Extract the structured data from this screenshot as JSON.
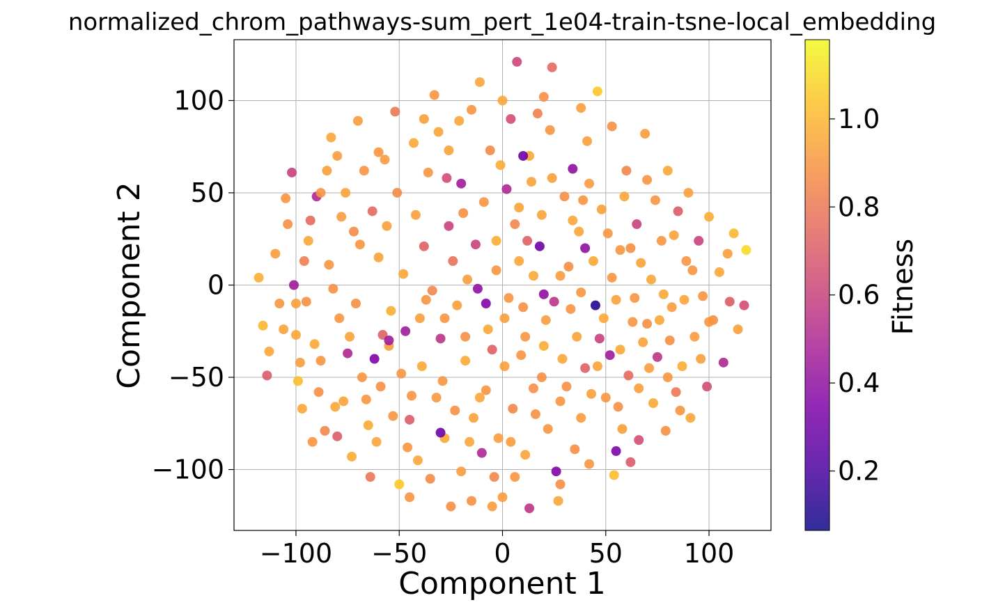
{
  "chart_data": {
    "type": "scatter",
    "title": "normalized_chrom_pathways-sum_pert_1e04-train-tsne-local_embedding",
    "xlabel": "Component 1",
    "ylabel": "Component 2",
    "xlim": [
      -130,
      130
    ],
    "ylim": [
      -133,
      133
    ],
    "xticks": [
      -100,
      -50,
      0,
      50,
      100
    ],
    "yticks": [
      -100,
      -50,
      0,
      50,
      100
    ],
    "xtick_labels": [
      "−100",
      "−50",
      "0",
      "50",
      "100"
    ],
    "ytick_labels": [
      "−100",
      "−50",
      "0",
      "50",
      "100"
    ],
    "grid": true,
    "colorbar": {
      "label": "Fitness",
      "range": [
        0.065,
        1.18
      ],
      "ticks": [
        0.2,
        0.4,
        0.6,
        0.8,
        1.0
      ],
      "tick_labels": [
        "0.2",
        "0.4",
        "0.6",
        "0.8",
        "1.0"
      ],
      "colormap": "plasma"
    },
    "points": [
      [
        -118,
        4,
        0.98
      ],
      [
        -116,
        -22,
        1.0
      ],
      [
        -113,
        -36,
        0.95
      ],
      [
        -114,
        -49,
        0.7
      ],
      [
        -110,
        17,
        0.92
      ],
      [
        -105,
        47,
        0.9
      ],
      [
        -102,
        61,
        0.6
      ],
      [
        -101,
        0,
        0.45
      ],
      [
        -100,
        -27,
        0.95
      ],
      [
        -99,
        -52,
        1.02
      ],
      [
        -97,
        -67,
        0.95
      ],
      [
        -95,
        -9,
        0.88
      ],
      [
        -93,
        35,
        0.75
      ],
      [
        -90,
        48,
        0.5
      ],
      [
        -88,
        -41,
        0.9
      ],
      [
        -86,
        -79,
        0.85
      ],
      [
        -83,
        80,
        0.95
      ],
      [
        -82,
        -2,
        0.88
      ],
      [
        -80,
        -82,
        0.7
      ],
      [
        -77,
        -63,
        0.94
      ],
      [
        -75,
        -37,
        0.5
      ],
      [
        -73,
        -93,
        0.97
      ],
      [
        -72,
        29,
        0.86
      ],
      [
        -70,
        89,
        0.92
      ],
      [
        -68,
        -50,
        0.9
      ],
      [
        -66,
        -62,
        0.9
      ],
      [
        -64,
        -104,
        0.8
      ],
      [
        -62,
        -40,
        0.35
      ],
      [
        -60,
        15,
        0.94
      ],
      [
        -58,
        -27,
        0.72
      ],
      [
        -55,
        -33,
        0.92
      ],
      [
        -53,
        -71,
        0.9
      ],
      [
        -52,
        94,
        0.8
      ],
      [
        -50,
        -108,
        1.05
      ],
      [
        -49,
        -48,
        0.9
      ],
      [
        -47,
        -25,
        0.45
      ],
      [
        -45,
        -73,
        0.7
      ],
      [
        -43,
        77,
        0.96
      ],
      [
        -40,
        -18,
        0.93
      ],
      [
        -38,
        21,
        0.72
      ],
      [
        -37,
        -8,
        0.9
      ],
      [
        -35,
        -105,
        0.86
      ],
      [
        -33,
        103,
        0.9
      ],
      [
        -32,
        -61,
        0.91
      ],
      [
        -30,
        -29,
        0.55
      ],
      [
        -28,
        -83,
        0.96
      ],
      [
        -27,
        58,
        0.65
      ],
      [
        -25,
        -120,
        0.88
      ],
      [
        -24,
        13,
        0.78
      ],
      [
        -22,
        -11,
        0.93
      ],
      [
        -20,
        -101,
        0.92
      ],
      [
        -19,
        39,
        0.88
      ],
      [
        -18,
        -41,
        0.96
      ],
      [
        -16,
        -85,
        0.95
      ],
      [
        -15,
        -117,
        0.88
      ],
      [
        -13,
        22,
        0.6
      ],
      [
        -12,
        -2,
        0.4
      ],
      [
        -11,
        110,
        0.95
      ],
      [
        -10,
        -91,
        0.5
      ],
      [
        -8,
        -57,
        0.9
      ],
      [
        -7,
        -24,
        0.96
      ],
      [
        -6,
        73,
        0.86
      ],
      [
        -4,
        -104,
        0.85
      ],
      [
        -3,
        24,
        0.97
      ],
      [
        -2,
        -83,
        0.92
      ],
      [
        0,
        -115,
        0.92
      ],
      [
        1,
        -44,
        0.93
      ],
      [
        2,
        52,
        0.5
      ],
      [
        3,
        -7,
        0.9
      ],
      [
        4,
        90,
        0.65
      ],
      [
        5,
        -67,
        0.85
      ],
      [
        6,
        -104,
        0.9
      ],
      [
        7,
        121,
        0.62
      ],
      [
        8,
        13,
        0.95
      ],
      [
        10,
        -12,
        0.88
      ],
      [
        11,
        -92,
        0.94
      ],
      [
        12,
        24,
        0.72
      ],
      [
        13,
        -121,
        0.55
      ],
      [
        14,
        56,
        0.94
      ],
      [
        15,
        -56,
        0.88
      ],
      [
        17,
        93,
        0.83
      ],
      [
        18,
        21,
        0.3
      ],
      [
        20,
        -33,
        0.97
      ],
      [
        22,
        -78,
        0.9
      ],
      [
        24,
        118,
        0.75
      ],
      [
        25,
        -9,
        0.55
      ],
      [
        26,
        -101,
        0.35
      ],
      [
        27,
        -117,
        0.95
      ],
      [
        28,
        5,
        0.92
      ],
      [
        30,
        48,
        0.88
      ],
      [
        31,
        -55,
        0.88
      ],
      [
        33,
        -13,
        0.9
      ],
      [
        34,
        63,
        0.4
      ],
      [
        35,
        -89,
        0.88
      ],
      [
        37,
        29,
        0.95
      ],
      [
        38,
        -72,
        0.92
      ],
      [
        40,
        -45,
        0.72
      ],
      [
        41,
        78,
        0.93
      ],
      [
        42,
        -97,
        0.9
      ],
      [
        44,
        13,
        0.96
      ],
      [
        45,
        -11,
        0.12
      ],
      [
        46,
        105,
        1.05
      ],
      [
        47,
        -29,
        0.6
      ],
      [
        48,
        41,
        0.93
      ],
      [
        50,
        -61,
        0.9
      ],
      [
        52,
        -38,
        0.45
      ],
      [
        53,
        86,
        0.88
      ],
      [
        54,
        -103,
        1.02
      ],
      [
        55,
        -8,
        0.94
      ],
      [
        57,
        19,
        0.9
      ],
      [
        58,
        -78,
        0.93
      ],
      [
        60,
        62,
        0.85
      ],
      [
        61,
        -49,
        0.75
      ],
      [
        62,
        -96,
        0.7
      ],
      [
        64,
        -7,
        0.9
      ],
      [
        65,
        33,
        0.6
      ],
      [
        66,
        -84,
        0.65
      ],
      [
        68,
        -31,
        0.94
      ],
      [
        69,
        82,
        0.92
      ],
      [
        70,
        -21,
        0.88
      ],
      [
        72,
        3,
        0.95
      ],
      [
        73,
        -64,
        0.96
      ],
      [
        75,
        -39,
        0.55
      ],
      [
        77,
        24,
        0.9
      ],
      [
        79,
        -79,
        0.88
      ],
      [
        80,
        62,
        0.95
      ],
      [
        82,
        -12,
        0.92
      ],
      [
        84,
        -58,
        0.8
      ],
      [
        85,
        40,
        0.7
      ],
      [
        87,
        -44,
        0.97
      ],
      [
        89,
        13,
        0.9
      ],
      [
        91,
        -72,
        0.95
      ],
      [
        93,
        -28,
        0.92
      ],
      [
        95,
        24,
        0.6
      ],
      [
        97,
        -6,
        0.9
      ],
      [
        99,
        -55,
        0.65
      ],
      [
        100,
        37,
        0.97
      ],
      [
        102,
        -19,
        0.88
      ],
      [
        105,
        7,
        0.95
      ],
      [
        107,
        -42,
        0.5
      ],
      [
        109,
        17,
        0.93
      ],
      [
        110,
        -9,
        0.7
      ],
      [
        112,
        28,
        1.0
      ],
      [
        114,
        -24,
        0.93
      ],
      [
        117,
        -11,
        0.65
      ],
      [
        118,
        19,
        1.1
      ],
      [
        -108,
        -10,
        0.9
      ],
      [
        -104,
        33,
        0.88
      ],
      [
        -96,
        13,
        0.82
      ],
      [
        -91,
        -32,
        0.96
      ],
      [
        -85,
        62,
        0.93
      ],
      [
        -79,
        -18,
        0.9
      ],
      [
        -76,
        50,
        0.94
      ],
      [
        -71,
        -10,
        0.88
      ],
      [
        -67,
        62,
        0.9
      ],
      [
        -63,
        40,
        0.75
      ],
      [
        -61,
        -85,
        0.95
      ],
      [
        -57,
        68,
        0.92
      ],
      [
        -54,
        -14,
        0.97
      ],
      [
        -51,
        50,
        0.86
      ],
      [
        -48,
        6,
        0.95
      ],
      [
        -46,
        -88,
        0.9
      ],
      [
        -42,
        38,
        0.93
      ],
      [
        -39,
        -44,
        0.96
      ],
      [
        -36,
        61,
        0.9
      ],
      [
        -34,
        -3,
        0.85
      ],
      [
        -31,
        83,
        0.94
      ],
      [
        -29,
        -52,
        0.9
      ],
      [
        -26,
        32,
        0.6
      ],
      [
        -23,
        -68,
        0.88
      ],
      [
        -21,
        89,
        0.95
      ],
      [
        -17,
        3,
        0.92
      ],
      [
        -14,
        -72,
        0.94
      ],
      [
        -9,
        45,
        0.9
      ],
      [
        -5,
        -35,
        0.72
      ],
      [
        -1,
        65,
        0.97
      ],
      [
        1,
        -18,
        0.93
      ],
      [
        6,
        33,
        0.85
      ],
      [
        9,
        -38,
        0.9
      ],
      [
        13,
        70,
        0.96
      ],
      [
        16,
        -70,
        0.88
      ],
      [
        19,
        38,
        0.94
      ],
      [
        21,
        -19,
        0.92
      ],
      [
        23,
        84,
        0.9
      ],
      [
        29,
        -40,
        0.96
      ],
      [
        32,
        10,
        0.88
      ],
      [
        36,
        -28,
        0.94
      ],
      [
        39,
        46,
        0.9
      ],
      [
        43,
        -59,
        0.93
      ],
      [
        49,
        -18,
        0.96
      ],
      [
        51,
        28,
        0.9
      ],
      [
        56,
        -66,
        0.88
      ],
      [
        59,
        48,
        0.95
      ],
      [
        63,
        -20,
        0.9
      ],
      [
        67,
        12,
        0.94
      ],
      [
        71,
        -45,
        0.92
      ],
      [
        74,
        46,
        0.9
      ],
      [
        78,
        -5,
        0.96
      ],
      [
        81,
        -30,
        0.88
      ],
      [
        83,
        27,
        0.94
      ],
      [
        86,
        -68,
        0.9
      ],
      [
        88,
        -8,
        0.95
      ],
      [
        92,
        8,
        0.9
      ],
      [
        96,
        -40,
        0.93
      ],
      [
        -106,
        -24,
        0.94
      ],
      [
        -98,
        -42,
        0.92
      ],
      [
        -94,
        24,
        0.96
      ],
      [
        -89,
        -58,
        0.88
      ],
      [
        -84,
        11,
        0.9
      ],
      [
        -81,
        -66,
        0.95
      ],
      [
        -78,
        37,
        0.92
      ],
      [
        -74,
        -28,
        0.94
      ],
      [
        -69,
        22,
        0.9
      ],
      [
        -65,
        -76,
        0.96
      ],
      [
        -59,
        -55,
        0.88
      ],
      [
        -56,
        32,
        0.93
      ],
      [
        -44,
        -60,
        0.9
      ],
      [
        -41,
        -95,
        0.95
      ],
      [
        -28,
        -18,
        0.9
      ],
      [
        -26,
        73,
        0.94
      ],
      [
        -18,
        -28,
        0.88
      ],
      [
        -11,
        -61,
        0.95
      ],
      [
        -3,
        8,
        0.9
      ],
      [
        4,
        -85,
        0.92
      ],
      [
        8,
        42,
        0.94
      ],
      [
        11,
        -28,
        0.9
      ],
      [
        15,
        5,
        0.96
      ],
      [
        19,
        -50,
        0.88
      ],
      [
        24,
        58,
        0.93
      ],
      [
        28,
        -63,
        0.9
      ],
      [
        34,
        35,
        0.95
      ],
      [
        38,
        -4,
        0.9
      ],
      [
        42,
        55,
        0.92
      ],
      [
        46,
        -44,
        0.94
      ],
      [
        53,
        4,
        0.9
      ],
      [
        57,
        -35,
        0.96
      ],
      [
        62,
        20,
        0.88
      ],
      [
        66,
        -56,
        0.93
      ],
      [
        70,
        57,
        0.9
      ],
      [
        76,
        -19,
        0.95
      ],
      [
        80,
        -50,
        0.9
      ],
      [
        -60,
        72,
        0.9
      ],
      [
        -38,
        90,
        0.93
      ],
      [
        -15,
        95,
        0.9
      ],
      [
        0,
        100,
        0.95
      ],
      [
        20,
        102,
        0.88
      ],
      [
        38,
        96,
        0.93
      ],
      [
        -45,
        -115,
        0.9
      ],
      [
        -5,
        -120,
        0.92
      ],
      [
        28,
        -108,
        0.88
      ],
      [
        -80,
        70,
        0.92
      ],
      [
        -88,
        50,
        0.9
      ],
      [
        90,
        50,
        0.93
      ],
      [
        100,
        -20,
        0.9
      ],
      [
        -100,
        -10,
        0.93
      ],
      [
        -92,
        -85,
        0.9
      ],
      [
        -20,
        55,
        0.45
      ],
      [
        10,
        70,
        0.3
      ],
      [
        -30,
        -80,
        0.3
      ],
      [
        55,
        -90,
        0.35
      ],
      [
        -8,
        -10,
        0.35
      ],
      [
        20,
        -5,
        0.4
      ],
      [
        -55,
        -30,
        0.45
      ],
      [
        40,
        20,
        0.4
      ]
    ]
  }
}
